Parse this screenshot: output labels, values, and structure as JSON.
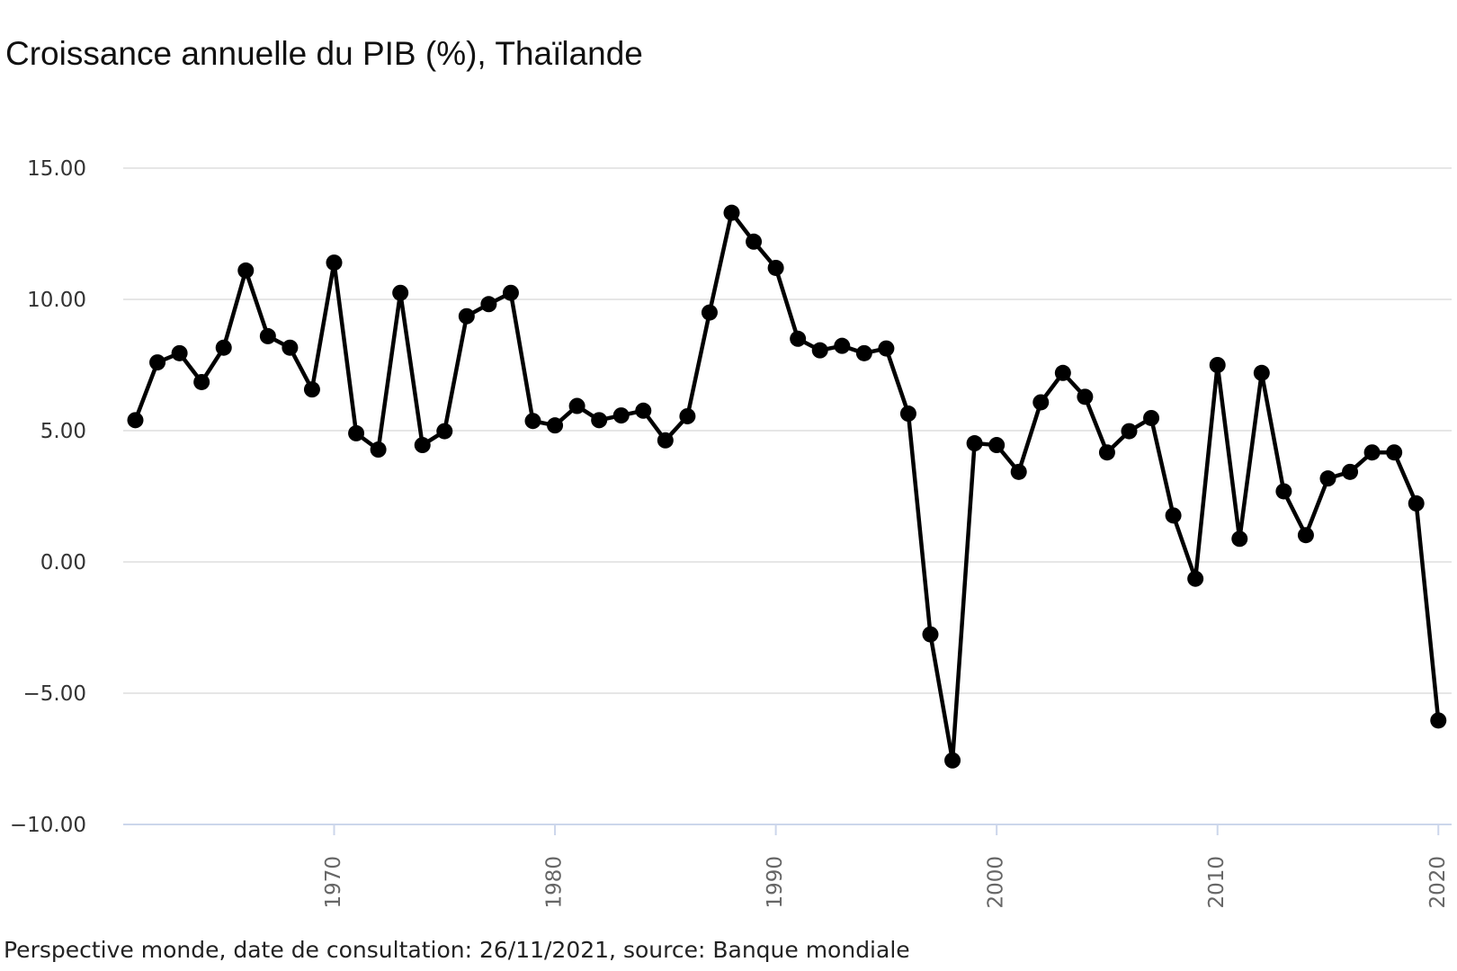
{
  "chart_data": {
    "type": "line",
    "title": "Croissance annuelle du PIB (%), Thaïlande",
    "source": "Perspective monde, date de consultation: 26/11/2021, source: Banque mondiale",
    "x": [
      1961,
      1962,
      1963,
      1964,
      1965,
      1966,
      1967,
      1968,
      1969,
      1970,
      1971,
      1972,
      1973,
      1974,
      1975,
      1976,
      1977,
      1978,
      1979,
      1980,
      1981,
      1982,
      1983,
      1984,
      1985,
      1986,
      1987,
      1988,
      1989,
      1990,
      1991,
      1992,
      1993,
      1994,
      1995,
      1996,
      1997,
      1998,
      1999,
      2000,
      2001,
      2002,
      2003,
      2004,
      2005,
      2006,
      2007,
      2008,
      2009,
      2010,
      2011,
      2012,
      2013,
      2014,
      2015,
      2016,
      2017,
      2018,
      2019,
      2020
    ],
    "values": [
      5.4,
      7.6,
      7.95,
      6.85,
      8.16,
      11.1,
      8.6,
      8.16,
      6.57,
      11.4,
      4.9,
      4.28,
      10.25,
      4.45,
      4.98,
      9.36,
      9.82,
      10.25,
      5.37,
      5.2,
      5.94,
      5.4,
      5.58,
      5.76,
      4.63,
      5.55,
      9.5,
      13.3,
      12.2,
      11.2,
      8.5,
      8.06,
      8.23,
      7.95,
      8.13,
      5.65,
      -2.76,
      -7.56,
      4.52,
      4.45,
      3.43,
      6.08,
      7.2,
      6.29,
      4.17,
      4.98,
      5.48,
      1.77,
      -0.64,
      7.5,
      0.88,
      7.2,
      2.69,
      1.02,
      3.18,
      3.43,
      4.17,
      4.17,
      2.23,
      -6.04
    ],
    "color": "#000000",
    "xlim": [
      1960.45,
      2020.6
    ],
    "xticks": [
      1970,
      1980,
      1990,
      2000,
      2010,
      2020
    ],
    "ylim": [
      -10,
      15
    ],
    "yticks": [
      {
        "value": -10,
        "label": "−10.00"
      },
      {
        "value": -5,
        "label": "−5.00"
      },
      {
        "value": 0,
        "label": "0.00"
      },
      {
        "value": 5,
        "label": "5.00"
      },
      {
        "value": 10,
        "label": "10.00"
      },
      {
        "value": 15,
        "label": "15.00"
      }
    ],
    "grid": true
  }
}
